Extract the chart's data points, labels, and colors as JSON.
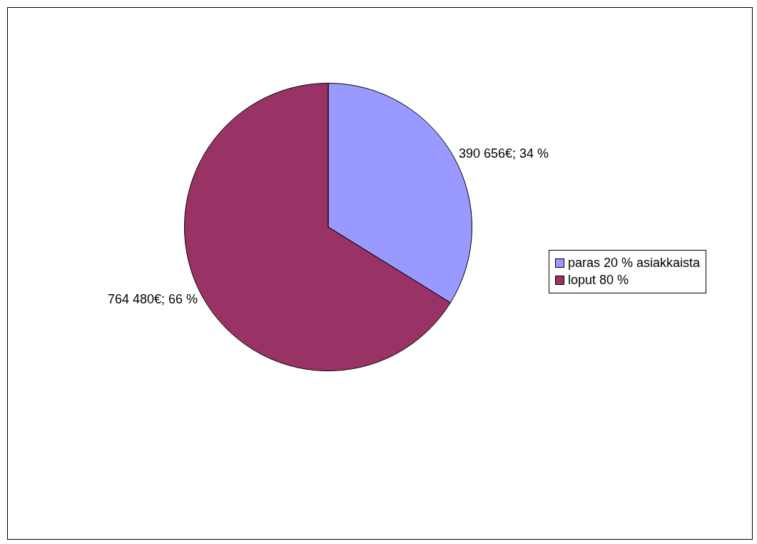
{
  "chart_data": {
    "type": "pie",
    "categories": [
      "paras 20 % asiakkaista",
      "loput 80 %"
    ],
    "values": [
      390656,
      764480
    ],
    "colors": [
      "#9999ff",
      "#993366"
    ],
    "value_labels": [
      "390 656€; 34 %",
      "764 480€; 66 %"
    ],
    "legend": "right"
  }
}
